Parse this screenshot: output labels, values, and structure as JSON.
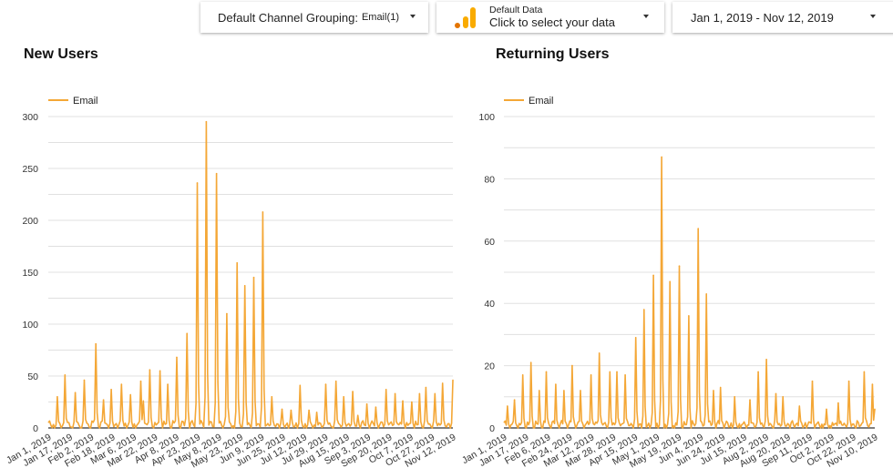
{
  "filters": {
    "channel": {
      "label": "Default Channel Grouping:",
      "value": "Email",
      "count": "(1)"
    },
    "data_source": {
      "label": "Default Data",
      "prompt": "Click to select your data"
    },
    "date_range": {
      "value": "Jan 1, 2019 - Nov 12, 2019"
    }
  },
  "colors": {
    "series": "#f4a736",
    "grid": "#e0e0e0",
    "axis": "#333333"
  },
  "chart_data": [
    {
      "type": "line",
      "title": "New Users",
      "legend": {
        "position": "top-left",
        "entries": [
          "Email"
        ]
      },
      "ylim": [
        0,
        300
      ],
      "yticks": [
        "0",
        "50",
        "100",
        "150",
        "200",
        "250",
        "300"
      ],
      "grid": true,
      "xlim": [
        "2019-01-01",
        "2019-11-12"
      ],
      "xticks": [
        "Jan 1, 2019",
        "Jan 17, 2019",
        "Feb 2, 2019",
        "Feb 18, 2019",
        "Mar 6, 2019",
        "Mar 22, 2019",
        "Apr 8, 2019",
        "Apr 23, 2019",
        "May 8, 2019",
        "May 23, 2019",
        "Jun 9, 2019",
        "Jun 25, 2019",
        "Jul 12, 2019",
        "Jul 29, 2019",
        "Aug 15, 2019",
        "Sep 3, 2019",
        "Sep 20, 2019",
        "Oct 7, 2019",
        "Oct 27, 2019",
        "Nov 12, 2019"
      ],
      "series": [
        {
          "name": "Email",
          "peaks": [
            [
              "2019-01-08",
              30
            ],
            [
              "2019-01-14",
              51
            ],
            [
              "2019-01-22",
              34
            ],
            [
              "2019-01-29",
              46
            ],
            [
              "2019-02-07",
              81
            ],
            [
              "2019-02-13",
              27
            ],
            [
              "2019-02-19",
              37
            ],
            [
              "2019-02-27",
              42
            ],
            [
              "2019-03-06",
              32
            ],
            [
              "2019-03-14",
              45
            ],
            [
              "2019-03-16",
              26
            ],
            [
              "2019-03-21",
              56
            ],
            [
              "2019-03-29",
              55
            ],
            [
              "2019-04-04",
              42
            ],
            [
              "2019-04-11",
              68
            ],
            [
              "2019-04-19",
              91
            ],
            [
              "2019-04-27",
              236
            ],
            [
              "2019-05-04",
              295
            ],
            [
              "2019-05-12",
              245
            ],
            [
              "2019-05-20",
              110
            ],
            [
              "2019-05-28",
              159
            ],
            [
              "2019-06-03",
              137
            ],
            [
              "2019-06-10",
              145
            ],
            [
              "2019-06-17",
              208
            ],
            [
              "2019-06-24",
              30
            ],
            [
              "2019-07-02",
              18
            ],
            [
              "2019-07-09",
              17
            ],
            [
              "2019-07-16",
              41
            ],
            [
              "2019-07-23",
              17
            ],
            [
              "2019-07-29",
              15
            ],
            [
              "2019-08-05",
              42
            ],
            [
              "2019-08-13",
              45
            ],
            [
              "2019-08-19",
              30
            ],
            [
              "2019-08-26",
              35
            ],
            [
              "2019-08-30",
              12
            ],
            [
              "2019-09-06",
              23
            ],
            [
              "2019-09-13",
              20
            ],
            [
              "2019-09-21",
              37
            ],
            [
              "2019-09-28",
              33
            ],
            [
              "2019-10-04",
              26
            ],
            [
              "2019-10-11",
              25
            ],
            [
              "2019-10-17",
              33
            ],
            [
              "2019-10-22",
              39
            ],
            [
              "2019-10-29",
              33
            ],
            [
              "2019-11-04",
              43
            ],
            [
              "2019-11-12",
              46
            ]
          ]
        }
      ]
    },
    {
      "type": "line",
      "title": "Returning Users",
      "legend": {
        "position": "top-left",
        "entries": [
          "Email"
        ]
      },
      "ylim": [
        0,
        100
      ],
      "yticks": [
        "0",
        "20",
        "40",
        "60",
        "80",
        "100"
      ],
      "grid": true,
      "xlim": [
        "2019-01-01",
        "2019-11-12"
      ],
      "xticks": [
        "Jan 1, 2019",
        "Jan 17, 2019",
        "Feb 6, 2019",
        "Feb 24, 2019",
        "Mar 12, 2019",
        "Mar 28, 2019",
        "Apr 15, 2019",
        "May 1, 2019",
        "May 19, 2019",
        "Jun 4, 2019",
        "Jun 24, 2019",
        "Jul 15, 2019",
        "Aug 2, 2019",
        "Aug 20, 2019",
        "Sep 11, 2019",
        "Oct 2, 2019",
        "Oct 22, 2019",
        "Nov 10, 2019"
      ],
      "series": [
        {
          "name": "Email",
          "peaks": [
            [
              "2019-01-04",
              7
            ],
            [
              "2019-01-10",
              9
            ],
            [
              "2019-01-17",
              17
            ],
            [
              "2019-01-24",
              21
            ],
            [
              "2019-01-31",
              12
            ],
            [
              "2019-02-06",
              18
            ],
            [
              "2019-02-14",
              14
            ],
            [
              "2019-02-21",
              12
            ],
            [
              "2019-02-28",
              20
            ],
            [
              "2019-03-07",
              12
            ],
            [
              "2019-03-16",
              17
            ],
            [
              "2019-03-23",
              24
            ],
            [
              "2019-04-01",
              18
            ],
            [
              "2019-04-07",
              18
            ],
            [
              "2019-04-14",
              17
            ],
            [
              "2019-04-23",
              29
            ],
            [
              "2019-04-30",
              38
            ],
            [
              "2019-05-08",
              49
            ],
            [
              "2019-05-15",
              87
            ],
            [
              "2019-05-22",
              47
            ],
            [
              "2019-05-30",
              52
            ],
            [
              "2019-06-07",
              36
            ],
            [
              "2019-06-15",
              64
            ],
            [
              "2019-06-22",
              43
            ],
            [
              "2019-06-28",
              12
            ],
            [
              "2019-07-04",
              13
            ],
            [
              "2019-07-16",
              10
            ],
            [
              "2019-07-29",
              9
            ],
            [
              "2019-08-05",
              18
            ],
            [
              "2019-08-12",
              22
            ],
            [
              "2019-08-20",
              11
            ],
            [
              "2019-08-26",
              10
            ],
            [
              "2019-09-09",
              7
            ],
            [
              "2019-09-20",
              15
            ],
            [
              "2019-10-02",
              6
            ],
            [
              "2019-10-12",
              8
            ],
            [
              "2019-10-21",
              15
            ],
            [
              "2019-11-03",
              18
            ],
            [
              "2019-11-10",
              14
            ],
            [
              "2019-11-12",
              6
            ]
          ]
        }
      ]
    }
  ]
}
